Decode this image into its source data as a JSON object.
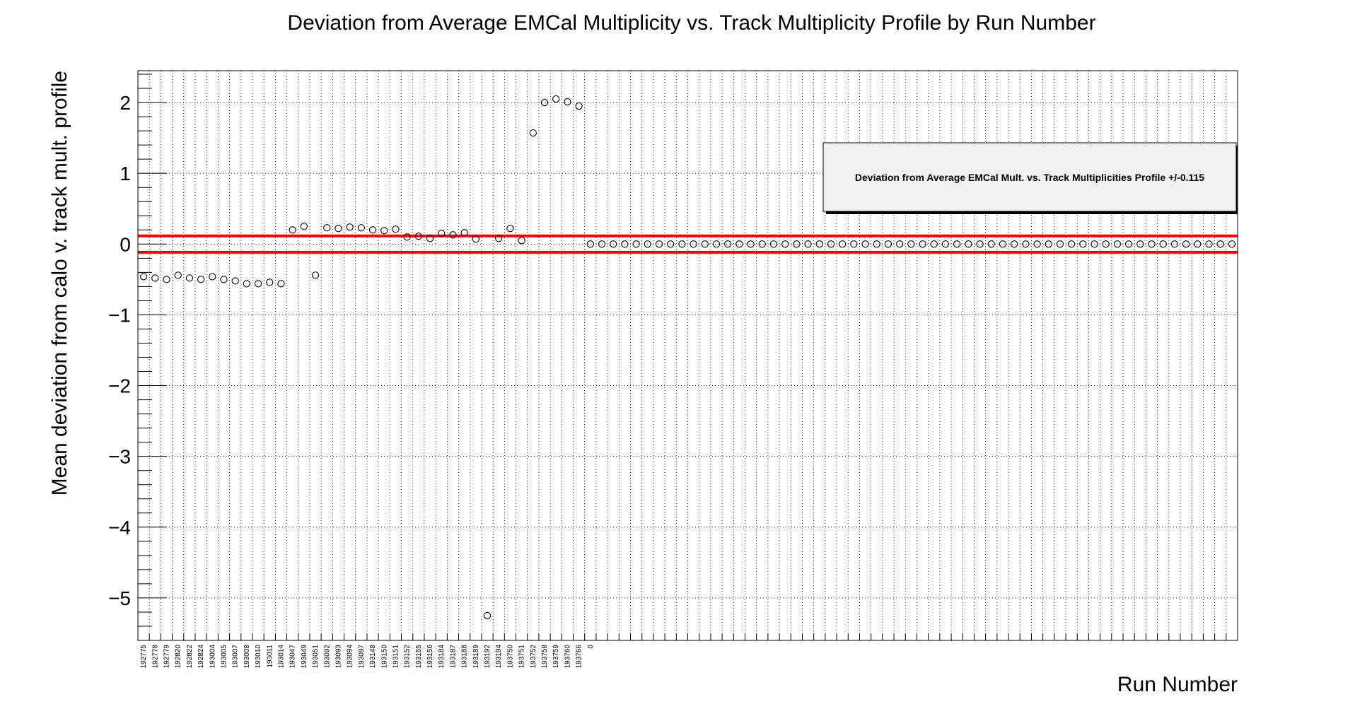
{
  "chart_data": {
    "type": "scatter",
    "title": "Deviation from Average EMCal Multiplicity vs. Track Multiplicity Profile by Run Number",
    "xlabel": "Run Number",
    "ylabel": "Mean deviation from calo v. track mult. profile",
    "ylim": [
      -5.6,
      2.45
    ],
    "yticks": [
      2,
      1,
      0,
      -1,
      -2,
      -3,
      -4,
      -5
    ],
    "ytick_labels": [
      "2",
      "1",
      "0",
      "−1",
      "−2",
      "−3",
      "−4",
      "−5"
    ],
    "grid": true,
    "n_bins": 96,
    "categories": [
      "192775",
      "192778",
      "192779",
      "192820",
      "192822",
      "192824",
      "193004",
      "193005",
      "193007",
      "193008",
      "193010",
      "193011",
      "193014",
      "193047",
      "193049",
      "193051",
      "193092",
      "193093",
      "193094",
      "193097",
      "193148",
      "193150",
      "193151",
      "193152",
      "193155",
      "193156",
      "193184",
      "193187",
      "193188",
      "193189",
      "193192",
      "193194",
      "193750",
      "193751",
      "193752",
      "193758",
      "193759",
      "193760",
      "193766",
      "0"
    ],
    "values": [
      -0.46,
      -0.48,
      -0.5,
      -0.44,
      -0.48,
      -0.5,
      -0.46,
      -0.5,
      -0.52,
      -0.56,
      -0.56,
      -0.54,
      -0.56,
      0.2,
      0.25,
      -0.44,
      0.23,
      0.22,
      0.24,
      0.23,
      0.2,
      0.19,
      0.21,
      0.1,
      0.11,
      0.08,
      0.15,
      0.13,
      0.16,
      0.07,
      -5.25,
      0.08,
      0.22,
      0.05,
      1.57,
      2.0,
      2.05,
      2.01,
      1.95,
      0.0
    ],
    "trailing_zero_points": 56,
    "threshold_lines": [
      0.115,
      -0.115
    ],
    "threshold_color": "#ff0000",
    "legend": {
      "text": "Deviation from Average EMCal Mult. vs. Track Multiplicities Profile +/-0.115",
      "placement": "top-right"
    }
  }
}
